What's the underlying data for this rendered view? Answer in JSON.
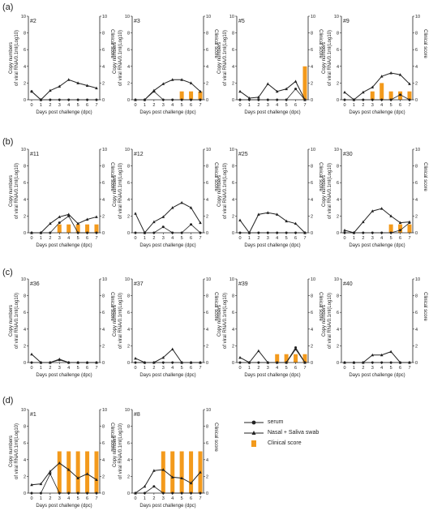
{
  "groups": [
    {
      "label": "(a)"
    },
    {
      "label": "(b)"
    },
    {
      "label": "(c)"
    },
    {
      "label": "(d)"
    }
  ],
  "legend": {
    "serum": "serum",
    "swab": "Nasal + Saliva swab",
    "score": "Clinical score"
  },
  "colors": {
    "line": "#222222",
    "bar": "#f39a1c"
  },
  "chart_data": [
    {
      "type": "line",
      "id": "#2",
      "x": [
        0,
        1,
        2,
        3,
        4,
        5,
        6,
        7
      ],
      "ylabel": "Copy numbers of viral RNA/0.1ml(Log10)",
      "y2label": "Clinical score",
      "xlabel": "Days post challenge (dpc)",
      "ylim": [
        0,
        10
      ],
      "y2lim": [
        0,
        10
      ],
      "yticks": [
        "0",
        "2",
        "4",
        "6",
        "8",
        "10"
      ],
      "y2ticks": [
        "0",
        "2",
        "4",
        "6",
        "8",
        "10"
      ],
      "serum": [
        1,
        0,
        0,
        0,
        0,
        0,
        0,
        0
      ],
      "swab": [
        1.0,
        0,
        1.1,
        1.6,
        2.4,
        2.0,
        1.7,
        1.4
      ],
      "score": [
        0,
        0,
        0,
        0,
        0,
        0,
        0,
        0
      ]
    },
    {
      "type": "line",
      "id": "#3",
      "x": [
        0,
        1,
        2,
        3,
        4,
        5,
        6,
        7
      ],
      "ylabel": "Copy numbers of viral RNA/0.1ml(Log10)",
      "y2label": "Clinical score",
      "xlabel": "Days post challenge (dpc)",
      "ylim": [
        0,
        10
      ],
      "y2lim": [
        0,
        10
      ],
      "yticks": [
        "0",
        "2",
        "4",
        "6",
        "8",
        "10"
      ],
      "y2ticks": [
        "0",
        "2",
        "4",
        "6",
        "8",
        "10"
      ],
      "serum": [
        0,
        0,
        1.0,
        0,
        0,
        0,
        0,
        0
      ],
      "swab": [
        0,
        0,
        1.1,
        1.9,
        2.4,
        2.4,
        2.0,
        1.0
      ],
      "score": [
        0,
        0,
        0,
        0,
        0,
        1,
        1,
        1
      ]
    },
    {
      "type": "line",
      "id": "#5",
      "x": [
        0,
        1,
        2,
        3,
        4,
        5,
        6,
        7
      ],
      "ylabel": "Copy numbers of viral RNA/0.1ml(Log10)",
      "y2label": "Clinical score",
      "xlabel": "Days post challenge (dpc)",
      "ylim": [
        0,
        10
      ],
      "y2lim": [
        0,
        10
      ],
      "yticks": [
        "0",
        "2",
        "4",
        "6",
        "8",
        "10"
      ],
      "y2ticks": [
        "0",
        "2",
        "4",
        "6",
        "8",
        "10"
      ],
      "serum": [
        0,
        0,
        0,
        0,
        0,
        0,
        1.3,
        0
      ],
      "swab": [
        1.0,
        0.2,
        0.3,
        1.9,
        1.0,
        1.3,
        2.2,
        0
      ],
      "score": [
        0,
        0,
        0,
        0,
        0,
        0,
        0,
        4
      ]
    },
    {
      "type": "line",
      "id": "#9",
      "x": [
        0,
        1,
        2,
        3,
        4,
        5,
        6,
        7
      ],
      "ylabel": "Copy numbers of viral RNA/0.1ml(Log10)",
      "y2label": "Clinical score",
      "xlabel": "Days post challenge (dpc)",
      "ylim": [
        0,
        10
      ],
      "y2lim": [
        0,
        10
      ],
      "yticks": [
        "0",
        "2",
        "4",
        "6",
        "8",
        "10"
      ],
      "y2ticks": [
        "0",
        "2",
        "4",
        "6",
        "8",
        "10"
      ],
      "serum": [
        0,
        0,
        0,
        0,
        0,
        0,
        0.6,
        0
      ],
      "swab": [
        0.9,
        0,
        0.9,
        1.5,
        2.8,
        3.2,
        3.0,
        1.9
      ],
      "score": [
        0,
        0,
        0,
        1,
        2,
        1,
        1,
        1
      ]
    },
    {
      "type": "line",
      "id": "#11",
      "x": [
        0,
        1,
        2,
        3,
        4,
        5,
        6,
        7
      ],
      "ylabel": "Copy numbers of viral RNA/0.1ml(Log10)",
      "y2label": "Clinical score",
      "xlabel": "Days post challenge (dpc)",
      "ylim": [
        0,
        10
      ],
      "y2lim": [
        0,
        10
      ],
      "yticks": [
        "0",
        "2",
        "4",
        "6",
        "8",
        "10"
      ],
      "y2ticks": [
        "0",
        "2",
        "4",
        "6",
        "8",
        "10"
      ],
      "serum": [
        0,
        0,
        0,
        1.2,
        2.0,
        0,
        0,
        0
      ],
      "swab": [
        0,
        0,
        1.1,
        1.9,
        2.2,
        1.1,
        1.6,
        1.9
      ],
      "score": [
        0,
        0,
        0,
        1,
        1,
        1,
        1,
        1
      ]
    },
    {
      "type": "line",
      "id": "#12",
      "x": [
        0,
        1,
        2,
        3,
        4,
        5,
        6,
        7
      ],
      "ylabel": "Copy numbers of viral RNA/0.1ml(Log10)",
      "y2label": "Clinical score",
      "xlabel": "Days post challenge (dpc)",
      "ylim": [
        0,
        10
      ],
      "y2lim": [
        0,
        10
      ],
      "yticks": [
        "0",
        "2",
        "4",
        "6",
        "8",
        "10"
      ],
      "y2ticks": [
        "0",
        "2",
        "4",
        "6",
        "8",
        "10"
      ],
      "serum": [
        0,
        0,
        0,
        0.7,
        0,
        0,
        1.0,
        0
      ],
      "swab": [
        2.3,
        0,
        1.3,
        1.9,
        3.0,
        3.6,
        3.0,
        1.2
      ],
      "score": [
        0,
        0,
        0,
        0,
        0,
        0,
        0,
        0
      ]
    },
    {
      "type": "line",
      "id": "#25",
      "x": [
        0,
        1,
        2,
        3,
        4,
        5,
        6,
        7
      ],
      "ylabel": "Copy numbers of viral RNA/0.1ml(Log10)",
      "y2label": "Clinical score",
      "xlabel": "Days post challenge (dpc)",
      "ylim": [
        0,
        10
      ],
      "y2lim": [
        0,
        10
      ],
      "yticks": [
        "0",
        "2",
        "4",
        "6",
        "8",
        "10"
      ],
      "y2ticks": [
        "0",
        "2",
        "4",
        "6",
        "8",
        "10"
      ],
      "serum": [
        0,
        0,
        0,
        0,
        0,
        0,
        0,
        0
      ],
      "swab": [
        1.5,
        0,
        2.2,
        2.4,
        2.2,
        1.4,
        1.1,
        0
      ],
      "score": [
        0,
        0,
        0,
        0,
        0,
        0,
        0,
        0
      ]
    },
    {
      "type": "line",
      "id": "#30",
      "x": [
        0,
        1,
        2,
        3,
        4,
        5,
        6,
        7
      ],
      "ylabel": "Copy numbers of viral RNA/0.1ml(Log10)",
      "y2label": "Clinical score",
      "xlabel": "Days post challenge (dpc)",
      "ylim": [
        0,
        10
      ],
      "y2lim": [
        0,
        10
      ],
      "yticks": [
        "0",
        "2",
        "4",
        "6",
        "8",
        "10"
      ],
      "y2ticks": [
        "0",
        "2",
        "4",
        "6",
        "8",
        "10"
      ],
      "serum": [
        0,
        0,
        0,
        0,
        0,
        0,
        0.3,
        1.2
      ],
      "swab": [
        0.3,
        0,
        1.3,
        2.6,
        2.9,
        2.0,
        1.2,
        1.3
      ],
      "score": [
        0,
        0,
        0,
        0,
        0,
        1,
        1,
        1
      ]
    },
    {
      "type": "line",
      "id": "#36",
      "x": [
        0,
        1,
        2,
        3,
        4,
        5,
        6,
        7
      ],
      "ylabel": "Copy numbers of viral RNA/0.1ml(Log10)",
      "y2label": "Clinical score",
      "xlabel": "Days post challenge (dpc)",
      "ylim": [
        0,
        10
      ],
      "y2lim": [
        0,
        10
      ],
      "yticks": [
        "0",
        "2",
        "4",
        "6",
        "8",
        "10"
      ],
      "y2ticks": [
        "0",
        "2",
        "4",
        "6",
        "8",
        "10"
      ],
      "serum": [
        0,
        0,
        0,
        0.3,
        0,
        0,
        0,
        0
      ],
      "swab": [
        1.0,
        0,
        0,
        0.4,
        0,
        0,
        0,
        0
      ],
      "score": [
        0,
        0,
        0,
        0,
        0,
        0,
        0,
        0
      ]
    },
    {
      "type": "line",
      "id": "#37",
      "x": [
        0,
        1,
        2,
        3,
        4,
        5,
        6,
        7
      ],
      "ylabel": "Copy numbers of viral RNA/0.1ml(Log10)",
      "y2label": "Clinical score",
      "xlabel": "Days post challenge (dpc)",
      "ylim": [
        0,
        10
      ],
      "y2lim": [
        0,
        10
      ],
      "yticks": [
        "0",
        "2",
        "4",
        "6",
        "8",
        "10"
      ],
      "y2ticks": [
        "0",
        "2",
        "4",
        "6",
        "8",
        "10"
      ],
      "serum": [
        0,
        0,
        0,
        0,
        0,
        0,
        0,
        0
      ],
      "swab": [
        0.5,
        0,
        0,
        0.6,
        1.6,
        0,
        0,
        0
      ],
      "score": [
        0,
        0,
        0,
        0,
        0,
        0,
        0,
        0
      ]
    },
    {
      "type": "line",
      "id": "#39",
      "x": [
        0,
        1,
        2,
        3,
        4,
        5,
        6,
        7
      ],
      "ylabel": "Copy numbers of viral RNA/0.1ml(Log10)",
      "y2label": "Clinical score",
      "xlabel": "Days post challenge (dpc)",
      "ylim": [
        0,
        10
      ],
      "y2lim": [
        0,
        10
      ],
      "yticks": [
        "0",
        "2",
        "4",
        "6",
        "8",
        "10"
      ],
      "y2ticks": [
        "0",
        "2",
        "4",
        "6",
        "8",
        "10"
      ],
      "serum": [
        0,
        0,
        0,
        0,
        0,
        0,
        1.8,
        0
      ],
      "swab": [
        0.6,
        0,
        1.4,
        0,
        0,
        0,
        1.6,
        0
      ],
      "score": [
        0,
        0,
        0,
        0,
        1,
        1,
        1,
        1
      ]
    },
    {
      "type": "line",
      "id": "#40",
      "x": [
        0,
        1,
        2,
        3,
        4,
        5,
        6,
        7
      ],
      "ylabel": "Copy numbers of viral RNA/0.1ml(Log10)",
      "y2label": "Clinical score",
      "xlabel": "Days post challenge (dpc)",
      "ylim": [
        0,
        10
      ],
      "y2lim": [
        0,
        10
      ],
      "yticks": [
        "0",
        "2",
        "4",
        "6",
        "8",
        "10"
      ],
      "y2ticks": [
        "0",
        "2",
        "4",
        "6",
        "8",
        "10"
      ],
      "serum": [
        0,
        0,
        0,
        0,
        0,
        0,
        0,
        0
      ],
      "swab": [
        0,
        0,
        0,
        0.9,
        0.9,
        1.3,
        0,
        0
      ],
      "score": [
        0,
        0,
        0,
        0,
        0,
        0,
        0,
        0
      ]
    },
    {
      "type": "line",
      "id": "#1",
      "x": [
        0,
        1,
        2,
        3,
        4,
        5,
        6,
        7
      ],
      "ylabel": "Copy numbers of viral RNA/0.1ml(Log10)",
      "y2label": "Clinical score",
      "xlabel": "Days post challenge (dpc)",
      "ylim": [
        0,
        10
      ],
      "y2lim": [
        0,
        10
      ],
      "yticks": [
        "0",
        "2",
        "4",
        "6",
        "8",
        "10"
      ],
      "y2ticks": [
        "0",
        "2",
        "4",
        "6",
        "8",
        "10"
      ],
      "serum": [
        0,
        0,
        2.3,
        0,
        0,
        0,
        0,
        0
      ],
      "swab": [
        1.0,
        1.1,
        2.6,
        3.6,
        2.8,
        1.8,
        2.3,
        1.6
      ],
      "score": [
        0,
        0,
        0,
        5,
        5,
        5,
        5,
        5
      ]
    },
    {
      "type": "line",
      "id": "#8",
      "x": [
        0,
        1,
        2,
        3,
        4,
        5,
        6,
        7
      ],
      "ylabel": "Copy numbers of viral RNA/0.1ml(Log10)",
      "y2label": "Clinical score",
      "xlabel": "Days post challenge (dpc)",
      "ylim": [
        0,
        10
      ],
      "y2lim": [
        0,
        10
      ],
      "yticks": [
        "0",
        "2",
        "4",
        "6",
        "8",
        "10"
      ],
      "y2ticks": [
        "0",
        "2",
        "4",
        "6",
        "8",
        "10"
      ],
      "serum": [
        0,
        0,
        0.8,
        0,
        0,
        0,
        0,
        0
      ],
      "swab": [
        0,
        0.8,
        2.7,
        2.8,
        1.9,
        1.8,
        1.2,
        2.5
      ],
      "score": [
        0,
        0,
        0,
        5,
        5,
        5,
        5,
        5
      ]
    }
  ]
}
